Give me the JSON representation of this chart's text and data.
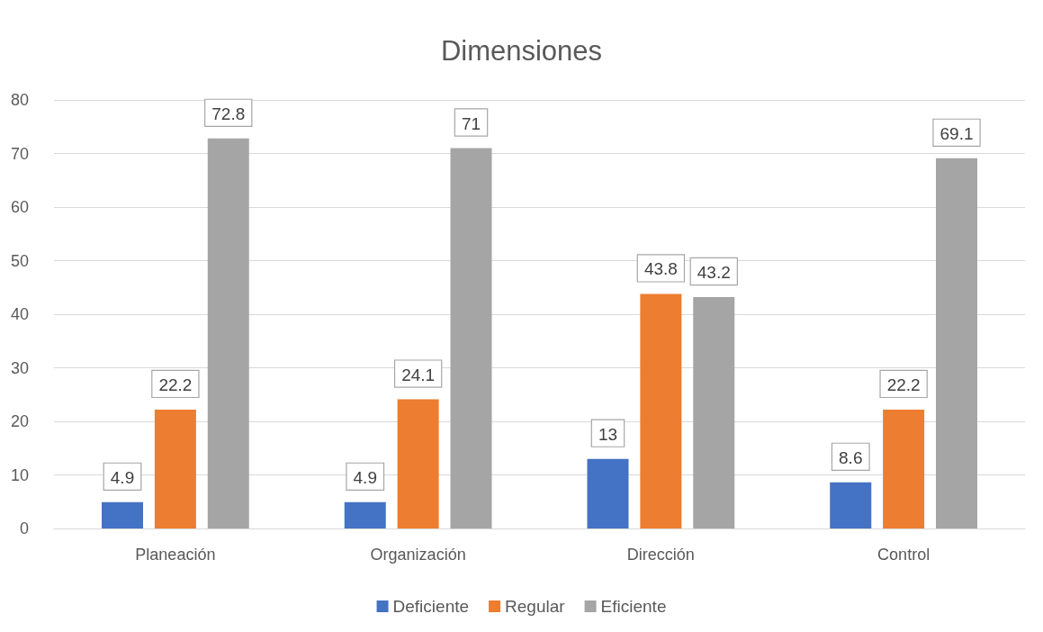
{
  "chart_data": {
    "type": "bar",
    "title": "Dimensiones",
    "categories": [
      "Planeación",
      "Organización",
      "Dirección",
      "Control"
    ],
    "series": [
      {
        "name": "Deficiente",
        "color": "#4472c4",
        "values": [
          4.9,
          4.9,
          13,
          8.6
        ]
      },
      {
        "name": "Regular",
        "color": "#ed7d31",
        "values": [
          22.2,
          24.1,
          43.8,
          22.2
        ]
      },
      {
        "name": "Eficiente",
        "color": "#a5a5a5",
        "values": [
          72.8,
          71,
          43.2,
          69.1
        ]
      }
    ],
    "ylim": [
      0,
      80
    ],
    "yticks": [
      0,
      10,
      20,
      30,
      40,
      50,
      60,
      70,
      80
    ],
    "grid": true,
    "legend": "bottom",
    "data_labels": true
  }
}
